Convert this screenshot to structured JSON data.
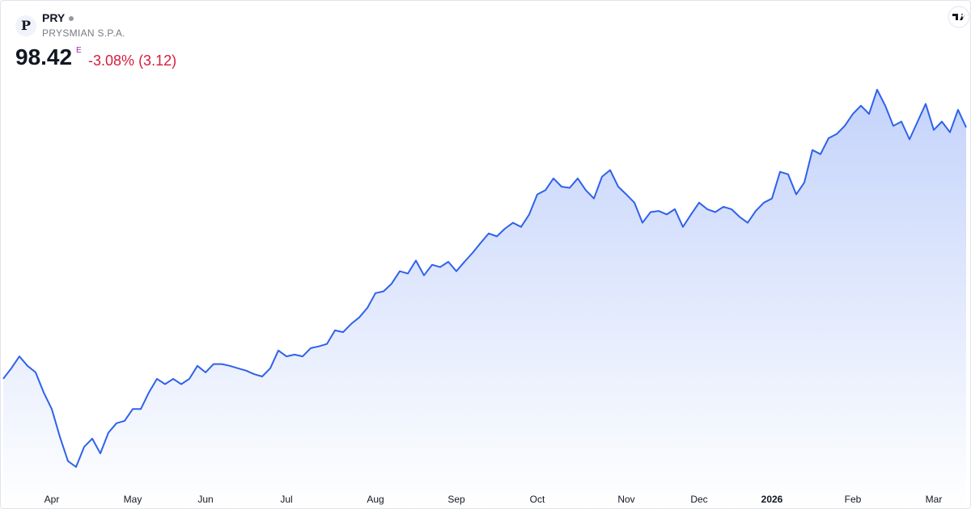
{
  "header": {
    "logo_letter": "P",
    "symbol": "PRY",
    "name": "PRYSMIAN S.P.A.",
    "price": "98.42",
    "price_flag": "E",
    "change_percent": "-3.08%",
    "change_value": "(3.12)"
  },
  "chart_data": {
    "type": "area",
    "color": "#2f62ea",
    "categories": [
      null,
      null,
      null,
      null,
      null,
      null,
      "Apr",
      null,
      null,
      null,
      null,
      null,
      null,
      null,
      null,
      null,
      "May",
      null,
      null,
      null,
      null,
      null,
      null,
      null,
      null,
      "Jun",
      null,
      null,
      null,
      null,
      null,
      null,
      null,
      null,
      null,
      "Jul",
      null,
      null,
      null,
      null,
      null,
      null,
      null,
      null,
      null,
      null,
      "Aug",
      null,
      null,
      null,
      null,
      null,
      null,
      null,
      null,
      null,
      "Sep",
      null,
      null,
      null,
      null,
      null,
      null,
      null,
      null,
      null,
      "Oct",
      null,
      null,
      null,
      null,
      null,
      null,
      null,
      null,
      null,
      null,
      "Nov",
      null,
      null,
      null,
      null,
      null,
      null,
      null,
      null,
      "Dec",
      null,
      null,
      null,
      null,
      null,
      null,
      null,
      null,
      "2026",
      null,
      null,
      null,
      null,
      null,
      null,
      null,
      null,
      null,
      "Feb",
      null,
      null,
      null,
      null,
      null,
      null,
      null,
      null,
      null,
      "Mar",
      null,
      null,
      null,
      null
    ],
    "values": [
      55.9,
      57.7,
      59.7,
      58.1,
      57.0,
      53.6,
      50.8,
      46.1,
      42.0,
      41.0,
      44.4,
      45.8,
      43.3,
      46.8,
      48.4,
      48.8,
      50.8,
      50.8,
      53.6,
      55.9,
      55.0,
      55.9,
      55.0,
      55.9,
      58.1,
      57.0,
      58.4,
      58.4,
      58.1,
      57.7,
      57.3,
      56.7,
      56.3,
      57.7,
      60.7,
      59.7,
      60.0,
      59.7,
      61.1,
      61.4,
      61.8,
      64.1,
      63.8,
      65.2,
      66.3,
      67.9,
      70.4,
      70.7,
      72.0,
      74.1,
      73.7,
      75.9,
      73.4,
      75.2,
      74.8,
      75.7,
      74.1,
      75.7,
      77.2,
      78.9,
      80.5,
      80.0,
      81.3,
      82.3,
      81.6,
      83.7,
      87.1,
      87.8,
      89.8,
      88.4,
      88.2,
      89.8,
      87.8,
      86.4,
      90.1,
      91.2,
      88.4,
      87.1,
      85.7,
      82.3,
      84.1,
      84.3,
      83.7,
      84.6,
      81.6,
      83.7,
      85.7,
      84.6,
      84.1,
      85.0,
      84.6,
      83.3,
      82.3,
      84.3,
      85.7,
      86.4,
      90.9,
      90.5,
      87.1,
      89.1,
      94.6,
      93.9,
      96.6,
      97.3,
      98.7,
      100.7,
      102.1,
      100.7,
      104.8,
      102.1,
      98.7,
      99.4,
      96.4,
      99.4,
      102.4,
      98.0,
      99.4,
      97.6,
      101.4,
      98.42
    ]
  }
}
